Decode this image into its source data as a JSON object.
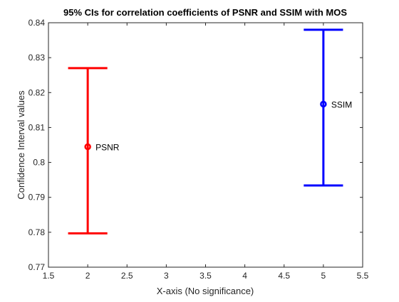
{
  "chart_data": {
    "type": "errorbar",
    "title": "95% CIs for correlation coefficients of PSNR and SSIM with MOS",
    "xlabel": "X-axis (No significance)",
    "ylabel": "Confidence Interval values",
    "xlim": [
      1.5,
      5.5
    ],
    "ylim": [
      0.77,
      0.84
    ],
    "xticks": [
      1.5,
      2,
      2.5,
      3,
      3.5,
      4,
      4.5,
      5,
      5.5
    ],
    "xtick_labels": [
      "1.5",
      "2",
      "2.5",
      "3",
      "3.5",
      "4",
      "4.5",
      "5",
      "5.5"
    ],
    "yticks": [
      0.77,
      0.78,
      0.79,
      0.8,
      0.81,
      0.82,
      0.83,
      0.84
    ],
    "ytick_labels": [
      "0.77",
      "0.78",
      "0.79",
      "0.8",
      "0.81",
      "0.82",
      "0.83",
      "0.84"
    ],
    "grid": false,
    "series": [
      {
        "name": "PSNR",
        "x": 2,
        "y": 0.8045,
        "lower": 0.7797,
        "upper": 0.827,
        "color": "#ff0000"
      },
      {
        "name": "SSIM",
        "x": 5,
        "y": 0.8167,
        "lower": 0.7934,
        "upper": 0.838,
        "color": "#0000ff"
      }
    ]
  }
}
